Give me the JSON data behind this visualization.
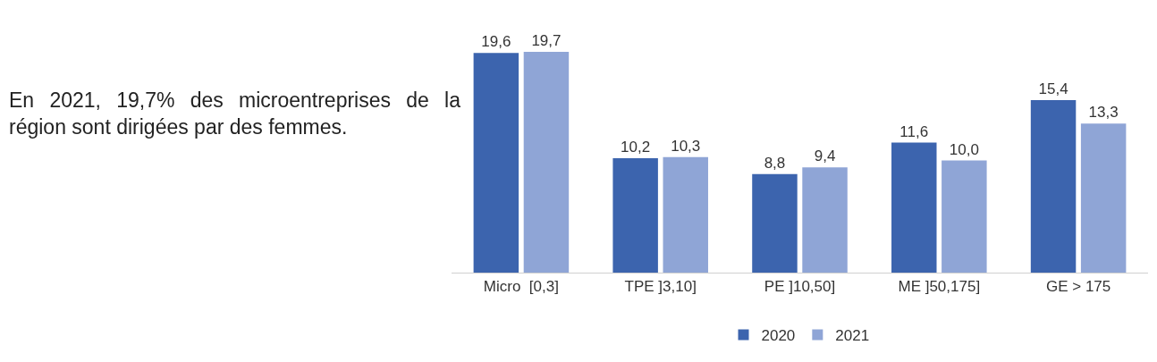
{
  "chart_data": {
    "type": "bar",
    "categories": [
      "Micro  [0,3]",
      "TPE ]3,10]",
      "PE ]10,50]",
      "ME ]50,175]",
      "GE > 175"
    ],
    "series": [
      {
        "name": "2020",
        "color": "#3c64ae",
        "values": [
          19.6,
          10.2,
          8.8,
          11.6,
          15.4
        ],
        "value_labels": [
          "19,6",
          "10,2",
          "8,8",
          "11,6",
          "15,4"
        ]
      },
      {
        "name": "2021",
        "color": "#8fa5d6",
        "values": [
          19.7,
          10.3,
          9.4,
          10.0,
          13.3
        ],
        "value_labels": [
          "19,7",
          "10,3",
          "9,4",
          "10,0",
          "13,3"
        ]
      }
    ],
    "legend": "bottom",
    "annotations": [
      "En 2021, 19,7% des microentreprises de la région sont dirigées par des femmes."
    ]
  }
}
